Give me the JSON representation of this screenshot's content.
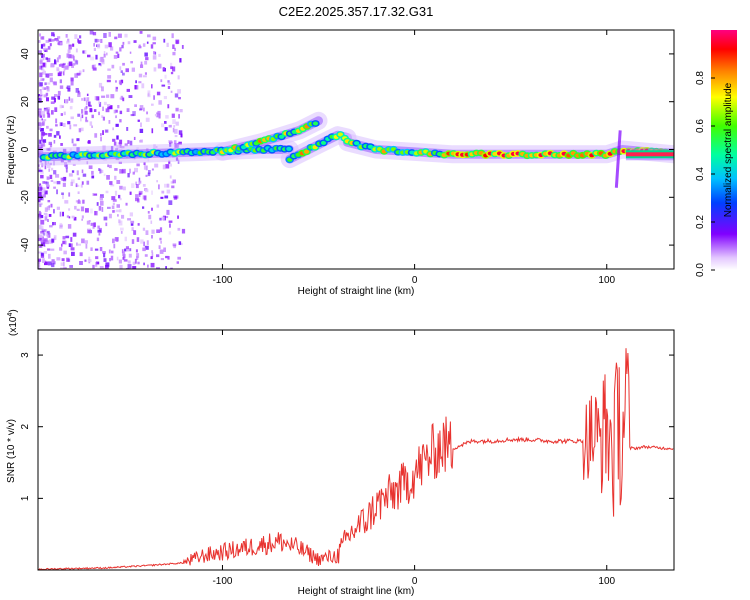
{
  "figure": {
    "title": "C2E2.2025.357.17.32.G31"
  },
  "chart_data": [
    {
      "type": "heatmap",
      "title": "C2E2.2025.357.17.32.G31",
      "xlabel": "Height of straight line (km)",
      "ylabel": "Frequency (Hz)",
      "xlim": [
        -196,
        135
      ],
      "ylim": [
        -50,
        50
      ],
      "xticks": [
        -100,
        0,
        100
      ],
      "yticks": [
        -40,
        -20,
        0,
        20,
        40
      ],
      "colorbar": {
        "label": "Normalized spectral amplitude",
        "range": [
          0,
          1
        ],
        "ticks": [
          0.0,
          0.2,
          0.4,
          0.6,
          0.8
        ],
        "colormap": [
          "#ffffff",
          "#8000ff",
          "#0080ff",
          "#00ffc0",
          "#60ff00",
          "#ffff00",
          "#ff8000",
          "#ff0000",
          "#ff0080"
        ]
      },
      "ridges": [
        {
          "x": [
            -193,
            -150,
            -110,
            -80,
            -65
          ],
          "y": [
            -3,
            -2,
            -1,
            0,
            0
          ]
        },
        {
          "x": [
            -100,
            -80,
            -60,
            -50
          ],
          "y": [
            -1,
            3,
            8,
            12
          ]
        },
        {
          "x": [
            -65,
            -55,
            -45,
            -40,
            -35
          ],
          "y": [
            -4,
            0,
            4,
            6,
            5
          ]
        },
        {
          "x": [
            -35,
            -20,
            0,
            20,
            60,
            100,
            108,
            135
          ],
          "y": [
            3,
            0,
            -1,
            -2,
            -2,
            -2,
            0,
            -2
          ]
        }
      ]
    },
    {
      "type": "line",
      "xlabel": "Height of straight line (km)",
      "ylabel": "SNR (10 * v/v)",
      "yscale_note": "(x10",
      "yscale_exp": "4",
      "xlim": [
        -196,
        135
      ],
      "ylim": [
        0,
        3.35
      ],
      "xticks": [
        -100,
        0,
        100
      ],
      "yticks": [
        1,
        2,
        3
      ],
      "color": "#e8332f",
      "series": [
        {
          "x": [
            -196,
            -180,
            -160,
            -140,
            -120,
            -110,
            -100,
            -90,
            -80,
            -70,
            -60,
            -50,
            -40,
            -35,
            -30,
            -25,
            -20,
            -15,
            -10,
            -5,
            0,
            5,
            10,
            15,
            20,
            30,
            40,
            50,
            60,
            70,
            80,
            88,
            92,
            96,
            100,
            104,
            106,
            108,
            110,
            112,
            115,
            120,
            130,
            135
          ],
          "y": [
            0.01,
            0.02,
            0.03,
            0.06,
            0.1,
            0.2,
            0.25,
            0.3,
            0.35,
            0.4,
            0.3,
            0.15,
            0.2,
            0.45,
            0.6,
            0.7,
            0.9,
            1.0,
            1.1,
            1.2,
            1.35,
            1.5,
            1.65,
            1.75,
            1.7,
            1.8,
            1.8,
            1.82,
            1.82,
            1.8,
            1.8,
            1.8,
            1.9,
            1.8,
            2.0,
            1.6,
            2.2,
            1.8,
            2.6,
            1.7,
            1.7,
            1.72,
            1.7,
            1.7
          ]
        }
      ]
    }
  ]
}
